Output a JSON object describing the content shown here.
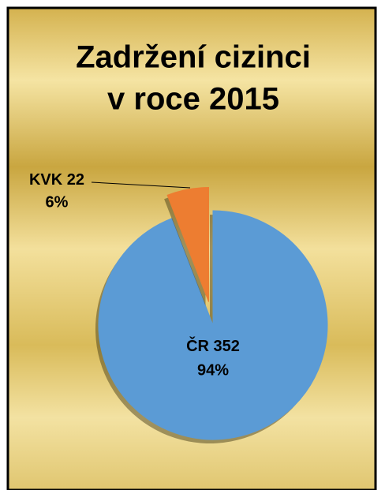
{
  "chart_data": {
    "type": "pie",
    "title": "Zadržení cizinci",
    "subtitle": "v roce 2015",
    "categories": [
      "ČR",
      "KVK"
    ],
    "values": [
      352,
      22
    ],
    "percent_labels": [
      "94%",
      "6%"
    ],
    "colors": [
      "#5b9bd5",
      "#ed7d31"
    ],
    "exploded": [
      false,
      true
    ]
  }
}
